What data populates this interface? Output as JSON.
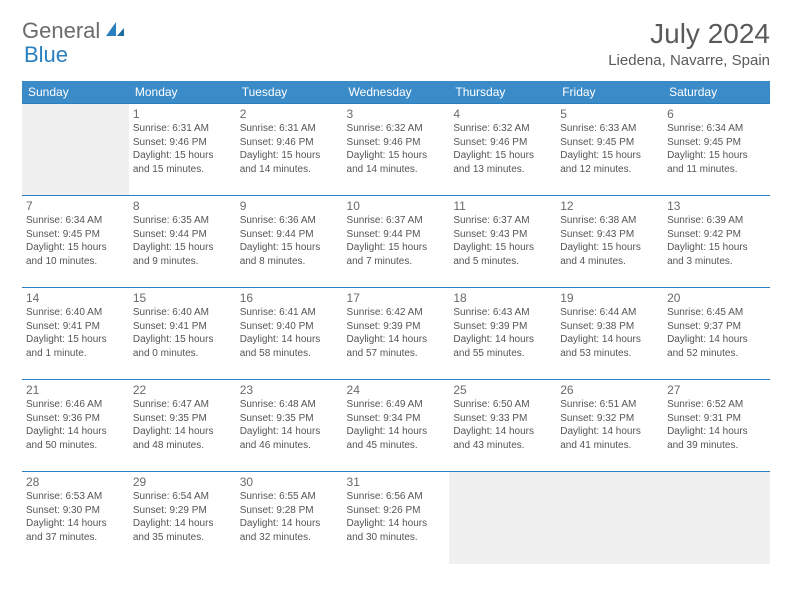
{
  "logo": {
    "text1": "General",
    "text2": "Blue"
  },
  "header": {
    "title": "July 2024",
    "location": "Liedena, Navarre, Spain"
  },
  "colors": {
    "header_bg": "#3b8bc8",
    "header_text": "#ffffff",
    "border": "#2a7fbf",
    "empty_bg": "#f0f0f0",
    "text": "#555555",
    "logo_gray": "#6b6b6b",
    "logo_blue": "#2a7fbf"
  },
  "day_names": [
    "Sunday",
    "Monday",
    "Tuesday",
    "Wednesday",
    "Thursday",
    "Friday",
    "Saturday"
  ],
  "weeks": [
    [
      null,
      {
        "n": "1",
        "sunrise": "Sunrise: 6:31 AM",
        "sunset": "Sunset: 9:46 PM",
        "dl1": "Daylight: 15 hours",
        "dl2": "and 15 minutes."
      },
      {
        "n": "2",
        "sunrise": "Sunrise: 6:31 AM",
        "sunset": "Sunset: 9:46 PM",
        "dl1": "Daylight: 15 hours",
        "dl2": "and 14 minutes."
      },
      {
        "n": "3",
        "sunrise": "Sunrise: 6:32 AM",
        "sunset": "Sunset: 9:46 PM",
        "dl1": "Daylight: 15 hours",
        "dl2": "and 14 minutes."
      },
      {
        "n": "4",
        "sunrise": "Sunrise: 6:32 AM",
        "sunset": "Sunset: 9:46 PM",
        "dl1": "Daylight: 15 hours",
        "dl2": "and 13 minutes."
      },
      {
        "n": "5",
        "sunrise": "Sunrise: 6:33 AM",
        "sunset": "Sunset: 9:45 PM",
        "dl1": "Daylight: 15 hours",
        "dl2": "and 12 minutes."
      },
      {
        "n": "6",
        "sunrise": "Sunrise: 6:34 AM",
        "sunset": "Sunset: 9:45 PM",
        "dl1": "Daylight: 15 hours",
        "dl2": "and 11 minutes."
      }
    ],
    [
      {
        "n": "7",
        "sunrise": "Sunrise: 6:34 AM",
        "sunset": "Sunset: 9:45 PM",
        "dl1": "Daylight: 15 hours",
        "dl2": "and 10 minutes."
      },
      {
        "n": "8",
        "sunrise": "Sunrise: 6:35 AM",
        "sunset": "Sunset: 9:44 PM",
        "dl1": "Daylight: 15 hours",
        "dl2": "and 9 minutes."
      },
      {
        "n": "9",
        "sunrise": "Sunrise: 6:36 AM",
        "sunset": "Sunset: 9:44 PM",
        "dl1": "Daylight: 15 hours",
        "dl2": "and 8 minutes."
      },
      {
        "n": "10",
        "sunrise": "Sunrise: 6:37 AM",
        "sunset": "Sunset: 9:44 PM",
        "dl1": "Daylight: 15 hours",
        "dl2": "and 7 minutes."
      },
      {
        "n": "11",
        "sunrise": "Sunrise: 6:37 AM",
        "sunset": "Sunset: 9:43 PM",
        "dl1": "Daylight: 15 hours",
        "dl2": "and 5 minutes."
      },
      {
        "n": "12",
        "sunrise": "Sunrise: 6:38 AM",
        "sunset": "Sunset: 9:43 PM",
        "dl1": "Daylight: 15 hours",
        "dl2": "and 4 minutes."
      },
      {
        "n": "13",
        "sunrise": "Sunrise: 6:39 AM",
        "sunset": "Sunset: 9:42 PM",
        "dl1": "Daylight: 15 hours",
        "dl2": "and 3 minutes."
      }
    ],
    [
      {
        "n": "14",
        "sunrise": "Sunrise: 6:40 AM",
        "sunset": "Sunset: 9:41 PM",
        "dl1": "Daylight: 15 hours",
        "dl2": "and 1 minute."
      },
      {
        "n": "15",
        "sunrise": "Sunrise: 6:40 AM",
        "sunset": "Sunset: 9:41 PM",
        "dl1": "Daylight: 15 hours",
        "dl2": "and 0 minutes."
      },
      {
        "n": "16",
        "sunrise": "Sunrise: 6:41 AM",
        "sunset": "Sunset: 9:40 PM",
        "dl1": "Daylight: 14 hours",
        "dl2": "and 58 minutes."
      },
      {
        "n": "17",
        "sunrise": "Sunrise: 6:42 AM",
        "sunset": "Sunset: 9:39 PM",
        "dl1": "Daylight: 14 hours",
        "dl2": "and 57 minutes."
      },
      {
        "n": "18",
        "sunrise": "Sunrise: 6:43 AM",
        "sunset": "Sunset: 9:39 PM",
        "dl1": "Daylight: 14 hours",
        "dl2": "and 55 minutes."
      },
      {
        "n": "19",
        "sunrise": "Sunrise: 6:44 AM",
        "sunset": "Sunset: 9:38 PM",
        "dl1": "Daylight: 14 hours",
        "dl2": "and 53 minutes."
      },
      {
        "n": "20",
        "sunrise": "Sunrise: 6:45 AM",
        "sunset": "Sunset: 9:37 PM",
        "dl1": "Daylight: 14 hours",
        "dl2": "and 52 minutes."
      }
    ],
    [
      {
        "n": "21",
        "sunrise": "Sunrise: 6:46 AM",
        "sunset": "Sunset: 9:36 PM",
        "dl1": "Daylight: 14 hours",
        "dl2": "and 50 minutes."
      },
      {
        "n": "22",
        "sunrise": "Sunrise: 6:47 AM",
        "sunset": "Sunset: 9:35 PM",
        "dl1": "Daylight: 14 hours",
        "dl2": "and 48 minutes."
      },
      {
        "n": "23",
        "sunrise": "Sunrise: 6:48 AM",
        "sunset": "Sunset: 9:35 PM",
        "dl1": "Daylight: 14 hours",
        "dl2": "and 46 minutes."
      },
      {
        "n": "24",
        "sunrise": "Sunrise: 6:49 AM",
        "sunset": "Sunset: 9:34 PM",
        "dl1": "Daylight: 14 hours",
        "dl2": "and 45 minutes."
      },
      {
        "n": "25",
        "sunrise": "Sunrise: 6:50 AM",
        "sunset": "Sunset: 9:33 PM",
        "dl1": "Daylight: 14 hours",
        "dl2": "and 43 minutes."
      },
      {
        "n": "26",
        "sunrise": "Sunrise: 6:51 AM",
        "sunset": "Sunset: 9:32 PM",
        "dl1": "Daylight: 14 hours",
        "dl2": "and 41 minutes."
      },
      {
        "n": "27",
        "sunrise": "Sunrise: 6:52 AM",
        "sunset": "Sunset: 9:31 PM",
        "dl1": "Daylight: 14 hours",
        "dl2": "and 39 minutes."
      }
    ],
    [
      {
        "n": "28",
        "sunrise": "Sunrise: 6:53 AM",
        "sunset": "Sunset: 9:30 PM",
        "dl1": "Daylight: 14 hours",
        "dl2": "and 37 minutes."
      },
      {
        "n": "29",
        "sunrise": "Sunrise: 6:54 AM",
        "sunset": "Sunset: 9:29 PM",
        "dl1": "Daylight: 14 hours",
        "dl2": "and 35 minutes."
      },
      {
        "n": "30",
        "sunrise": "Sunrise: 6:55 AM",
        "sunset": "Sunset: 9:28 PM",
        "dl1": "Daylight: 14 hours",
        "dl2": "and 32 minutes."
      },
      {
        "n": "31",
        "sunrise": "Sunrise: 6:56 AM",
        "sunset": "Sunset: 9:26 PM",
        "dl1": "Daylight: 14 hours",
        "dl2": "and 30 minutes."
      },
      null,
      null,
      null
    ]
  ]
}
